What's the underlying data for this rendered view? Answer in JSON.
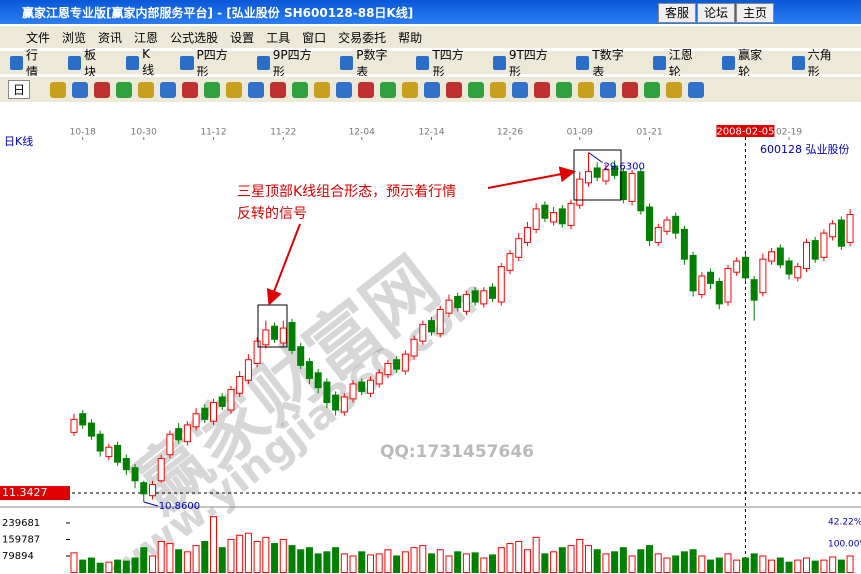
{
  "window": {
    "title": "赢家江恩专业版[赢家内部服务平台] - [弘业股份   SH600128-88日K线]",
    "buttons": [
      "客服",
      "论坛",
      "主页"
    ]
  },
  "menu": [
    "文件",
    "浏览",
    "资讯",
    "江恩",
    "公式选股",
    "设置",
    "工具",
    "窗口",
    "交易委托",
    "帮助"
  ],
  "toolbar": [
    "行情",
    "板块",
    "K线",
    "P四方形",
    "9P四方形",
    "P数字表",
    "T四方形",
    "9T四方形",
    "T数字表",
    "江恩轮",
    "赢家轮",
    "六角形"
  ],
  "period": "日",
  "chart_data": {
    "type": "candlestick",
    "title": "日K线",
    "stock": "600128  弘业股份",
    "categories": [
      null,
      "10-18",
      null,
      null,
      null,
      null,
      null,
      null,
      "10-30",
      null,
      null,
      null,
      null,
      null,
      null,
      null,
      "11-12",
      null,
      null,
      null,
      null,
      null,
      null,
      null,
      "11-22",
      null,
      null,
      null,
      null,
      null,
      null,
      null,
      null,
      "12-04",
      null,
      null,
      null,
      null,
      null,
      null,
      null,
      "12-14",
      null,
      null,
      null,
      null,
      null,
      null,
      null,
      null,
      "12-26",
      null,
      null,
      null,
      null,
      null,
      null,
      null,
      "01-09",
      null,
      null,
      null,
      null,
      null,
      null,
      null,
      "01-21",
      null,
      null,
      null,
      null,
      null,
      null,
      null,
      null,
      null,
      null,
      "2008-02-05",
      null,
      null,
      null,
      null,
      "02-19",
      null,
      null,
      null,
      null,
      null,
      null,
      null
    ],
    "open": [
      14.6,
      15.6,
      15.1,
      14.5,
      13.3,
      13.9,
      13.2,
      12.7,
      11.9,
      11.2,
      12.0,
      13.4,
      14.8,
      14.1,
      14.9,
      15.9,
      15.2,
      16.5,
      15.8,
      16.7,
      17.4,
      18.3,
      19.3,
      20.3,
      19.4,
      20.5,
      19.2,
      18.4,
      17.8,
      17.3,
      16.6,
      15.7,
      16.4,
      17.3,
      16.7,
      17.2,
      17.7,
      18.5,
      17.9,
      18.7,
      19.5,
      20.6,
      19.9,
      21.0,
      21.9,
      21.1,
      22.2,
      21.5,
      22.4,
      21.6,
      23.3,
      24.0,
      24.8,
      25.5,
      26.8,
      25.9,
      26.6,
      25.7,
      26.8,
      28.0,
      28.8,
      28.1,
      28.9,
      28.6,
      27.0,
      28.6,
      26.7,
      24.8,
      25.4,
      26.2,
      25.5,
      24.1,
      22.0,
      23.2,
      22.7,
      21.6,
      23.2,
      24.0,
      22.8,
      22.1,
      23.8,
      24.5,
      23.8,
      22.9,
      23.4,
      24.9,
      24.0,
      25.1,
      26.0,
      24.8
    ],
    "high": [
      15.6,
      15.8,
      15.3,
      14.7,
      14.0,
      14.1,
      13.4,
      12.9,
      12.0,
      12.0,
      13.4,
      14.7,
      15.1,
      15.2,
      15.9,
      16.1,
      16.4,
      16.7,
      17.1,
      17.9,
      18.8,
      19.7,
      20.6,
      20.5,
      20.6,
      20.7,
      19.4,
      18.6,
      18.0,
      17.5,
      16.8,
      16.7,
      17.4,
      17.5,
      17.6,
      18.0,
      18.5,
      18.7,
      19.0,
      19.8,
      20.6,
      20.8,
      21.4,
      22.0,
      22.1,
      22.2,
      22.4,
      22.4,
      22.6,
      23.7,
      24.4,
      25.3,
      25.9,
      26.9,
      27.0,
      26.7,
      26.8,
      27.1,
      28.6,
      29.63,
      29.1,
      29.0,
      29.2,
      28.8,
      28.7,
      28.8,
      26.9,
      25.8,
      26.2,
      26.4,
      25.7,
      24.3,
      23.2,
      23.4,
      22.9,
      23.6,
      24.0,
      24.2,
      23.0,
      24.2,
      24.5,
      24.7,
      24.0,
      23.7,
      25.0,
      25.1,
      25.5,
      26.0,
      26.2,
      26.6
    ],
    "low": [
      14.4,
      14.8,
      14.2,
      13.3,
      13.1,
      12.8,
      12.3,
      11.6,
      10.86,
      11.0,
      11.9,
      13.2,
      14.0,
      13.9,
      14.7,
      15.1,
      15.0,
      15.8,
      15.6,
      16.5,
      17.2,
      18.1,
      19.1,
      19.4,
      19.2,
      18.8,
      18.0,
      17.2,
      16.7,
      15.9,
      15.5,
      15.5,
      16.2,
      16.6,
      16.5,
      17.0,
      17.5,
      17.8,
      17.7,
      18.5,
      19.3,
      19.8,
      19.7,
      20.8,
      21.1,
      20.9,
      21.4,
      21.3,
      21.6,
      21.4,
      23.1,
      23.8,
      24.6,
      25.3,
      25.9,
      25.7,
      25.6,
      25.5,
      26.6,
      27.8,
      28.1,
      27.9,
      28.2,
      26.9,
      26.8,
      26.3,
      24.6,
      24.6,
      25.2,
      25.0,
      23.6,
      21.9,
      21.8,
      22.3,
      21.2,
      21.4,
      23.0,
      22.7,
      20.6,
      21.9,
      23.6,
      23.4,
      22.8,
      22.7,
      23.2,
      23.7,
      23.8,
      24.9,
      24.4,
      24.6
    ],
    "close": [
      15.3,
      15.0,
      14.4,
      13.6,
      13.8,
      13.0,
      12.6,
      12.0,
      11.3,
      11.8,
      13.2,
      14.5,
      14.2,
      15.0,
      15.6,
      15.3,
      16.2,
      16.0,
      16.9,
      17.6,
      18.5,
      19.5,
      20.1,
      19.6,
      20.2,
      19.0,
      18.2,
      17.5,
      17.0,
      16.2,
      15.8,
      16.5,
      17.2,
      16.8,
      17.4,
      17.8,
      18.3,
      18.0,
      18.8,
      19.6,
      20.4,
      20.0,
      21.2,
      21.7,
      21.3,
      22.0,
      21.6,
      22.2,
      21.8,
      23.5,
      24.2,
      25.0,
      25.6,
      26.6,
      26.1,
      26.4,
      25.8,
      26.9,
      28.2,
      28.6,
      28.3,
      28.7,
      28.4,
      27.1,
      28.5,
      26.5,
      24.9,
      25.6,
      26.0,
      25.3,
      23.9,
      22.2,
      23.0,
      22.6,
      21.5,
      23.4,
      23.8,
      22.9,
      21.7,
      23.9,
      24.3,
      23.6,
      23.1,
      23.5,
      24.8,
      23.9,
      25.3,
      25.8,
      24.6,
      26.3
    ],
    "up_color": "#ff0000",
    "down_color": "#008000",
    "ylim": [
      10.7,
      30.3
    ],
    "price_marks": {
      "values": [
        29.63,
        10.86
      ],
      "value_labels": [
        "29.6300",
        "10.8600"
      ]
    },
    "cursor_price": {
      "value": 11.3427,
      "label": "11.3427"
    },
    "annotation": [
      "三星顶部K线组合形态，预示着行情",
      "反转的信号"
    ],
    "watermarks": [
      "赢家财富网",
      "www.yingjia360.com",
      "QQ:1731457646"
    ],
    "volume": {
      "values": [
        95000,
        60000,
        70000,
        45000,
        50000,
        60000,
        55000,
        70000,
        120000,
        80000,
        150000,
        140000,
        110000,
        100000,
        130000,
        150000,
        270000,
        120000,
        160000,
        180000,
        190000,
        150000,
        170000,
        140000,
        160000,
        130000,
        110000,
        120000,
        90000,
        100000,
        120000,
        90000,
        80000,
        100000,
        85000,
        90000,
        110000,
        80000,
        100000,
        120000,
        130000,
        90000,
        110000,
        80000,
        100000,
        90000,
        95000,
        70000,
        85000,
        120000,
        140000,
        150000,
        110000,
        170000,
        90000,
        100000,
        120000,
        130000,
        160000,
        130000,
        110000,
        90000,
        100000,
        120000,
        80000,
        110000,
        130000,
        90000,
        70000,
        80000,
        100000,
        110000,
        80000,
        60000,
        70000,
        90000,
        60000,
        70000,
        90000,
        80000,
        60000,
        70000,
        50000,
        60000,
        70000,
        55000,
        60000,
        75000,
        60000,
        80000
      ],
      "ylim": [
        0,
        312000
      ],
      "yticks": [
        79894,
        159787,
        239681
      ],
      "right_labels": [
        {
          "value": 42.22,
          "label": "42.22%"
        },
        {
          "value": 100.0,
          "label": "100.00%"
        }
      ]
    }
  }
}
